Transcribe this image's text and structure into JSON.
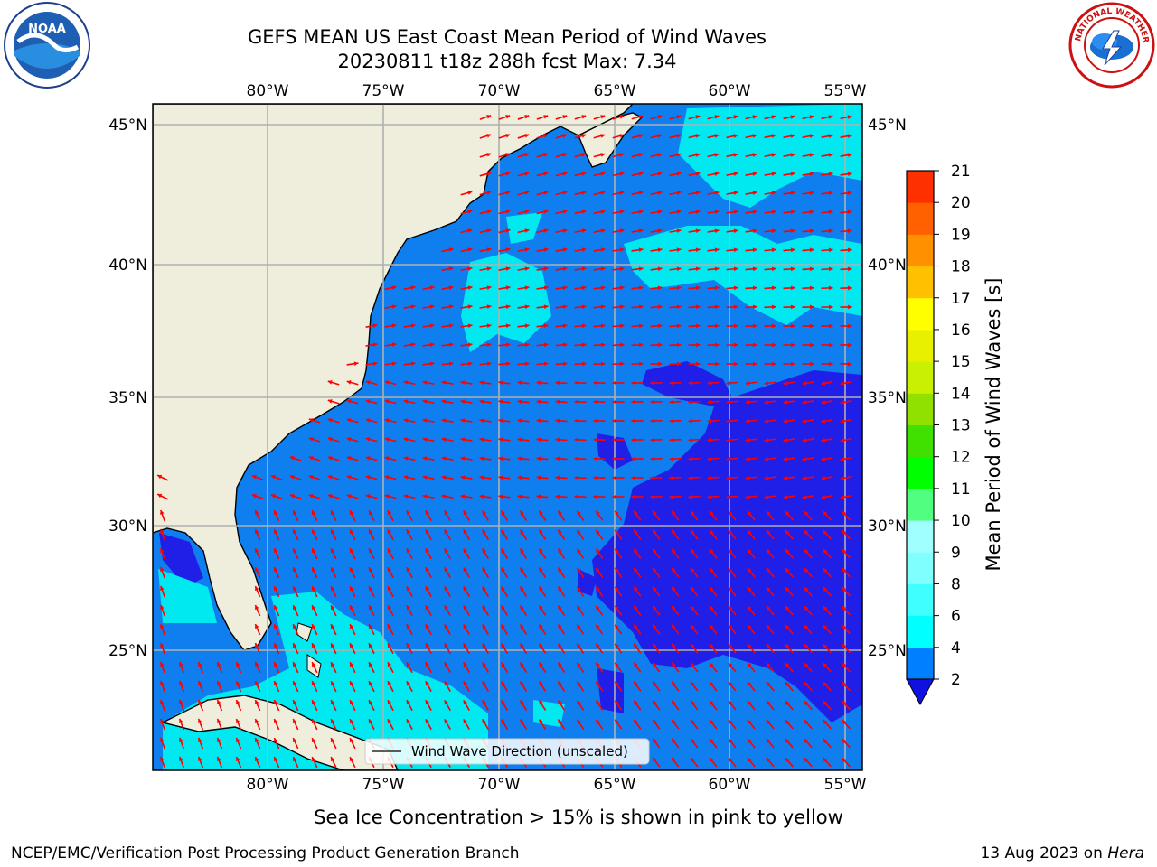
{
  "header": {
    "title_line1": "GEFS MEAN US East Coast Mean Period of Wind Waves",
    "title_line2": "20230811 t18z 288h fcst   Max: 7.34"
  },
  "logos": {
    "noaa_text": "NOAA",
    "nws_ring_text": "NATIONAL WEATHER SERVICE"
  },
  "map": {
    "lon_labels": [
      "80°W",
      "75°W",
      "70°W",
      "65°W",
      "60°W",
      "55°W"
    ],
    "lat_labels": [
      "45°N",
      "40°N",
      "35°N",
      "30°N",
      "25°N"
    ],
    "legend_label": "Wind Wave Direction (unscaled)",
    "colors": {
      "land": "#efeddb",
      "sea_lt2": "#1f1fe8",
      "sea_2_4": "#0f7ff0",
      "sea_4_6": "#00e8f0",
      "arrow": "#ff0000",
      "grid": "#b0b0b0"
    }
  },
  "colorbar": {
    "label": "Mean Period of Wind Waves [s]",
    "ticks": [
      "2",
      "4",
      "6",
      "8",
      "9",
      "10",
      "11",
      "12",
      "13",
      "14",
      "15",
      "16",
      "17",
      "18",
      "19",
      "20",
      "21"
    ],
    "colors": [
      "#0080ff",
      "#00ffff",
      "#40ffff",
      "#80ffff",
      "#a0ffff",
      "#50ff80",
      "#00ff00",
      "#40e000",
      "#90e000",
      "#c8f000",
      "#e8f000",
      "#ffff00",
      "#ffc000",
      "#ff9000",
      "#ff6000",
      "#ff3000",
      "#ff0000"
    ],
    "under_color": "#1010e0"
  },
  "footer": {
    "sea_ice_note": "Sea Ice Concentration > 15% is shown in pink to yellow",
    "producer": "NCEP/EMC/Verification Post Processing Product Generation Branch",
    "date": "13 Aug 2023 on ",
    "machine": "Hera"
  }
}
